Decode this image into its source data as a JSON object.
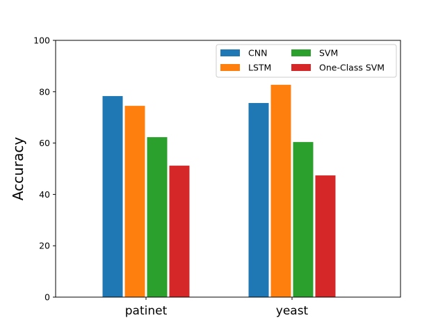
{
  "chart_data": {
    "type": "bar",
    "categories": [
      "patinet",
      "yeast"
    ],
    "series": [
      {
        "name": "CNN",
        "color": "#1f77b4",
        "values": [
          78.3,
          75.6
        ]
      },
      {
        "name": "LSTM",
        "color": "#ff7f0e",
        "values": [
          74.5,
          82.7
        ]
      },
      {
        "name": "SVM",
        "color": "#2ca02c",
        "values": [
          62.3,
          60.4
        ]
      },
      {
        "name": "One-Class SVM",
        "color": "#d62728",
        "values": [
          51.2,
          47.4
        ]
      }
    ],
    "title": "",
    "xlabel": "",
    "ylabel": "Accuracy",
    "ylim": [
      0,
      100
    ],
    "yticks": [
      0,
      20,
      40,
      60,
      80,
      100
    ],
    "grid": false,
    "legend_position": "top-right",
    "legend_columns": 2
  }
}
